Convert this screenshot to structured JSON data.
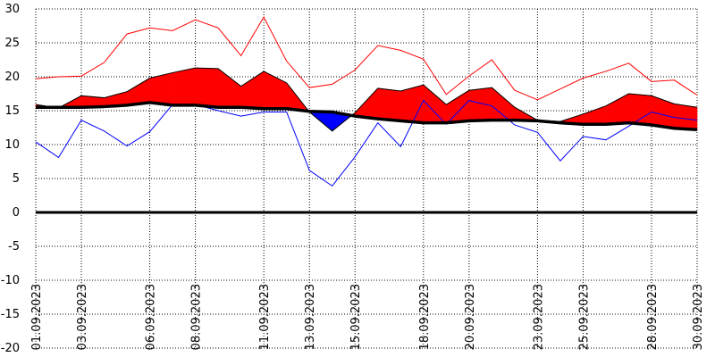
{
  "chart_data": {
    "type": "area",
    "title": "",
    "xlabel": "",
    "ylabel": "",
    "ylim": [
      -20,
      30
    ],
    "y_ticks": [
      "30",
      "25",
      "20",
      "15",
      "10",
      "5",
      "0",
      "-5",
      "-10",
      "-15",
      "-20"
    ],
    "x_labels": [
      "01.09.2023",
      "03.09.2023",
      "06.09.2023",
      "08.09.2023",
      "11.09.2023",
      "13.09.2023",
      "15.09.2023",
      "18.09.2023",
      "20.09.2023",
      "23.09.2023",
      "25.09.2023",
      "28.09.2023",
      "30.09.2023"
    ],
    "x_label_days": [
      1,
      3,
      6,
      8,
      11,
      13,
      15,
      18,
      20,
      23,
      25,
      28,
      30
    ],
    "grid": true,
    "days": [
      1,
      2,
      3,
      4,
      5,
      6,
      7,
      8,
      9,
      10,
      11,
      12,
      13,
      14,
      15,
      16,
      17,
      18,
      19,
      20,
      21,
      22,
      23,
      24,
      25,
      26,
      27,
      28,
      29,
      30
    ],
    "series": [
      {
        "color": "#ff0000",
        "style": "thin-line",
        "values": [
          19.7,
          20,
          20.1,
          22.1,
          26.3,
          27.2,
          26.8,
          28.4,
          27.2,
          23.1,
          28.8,
          22.3,
          18.4,
          18.9,
          21.0,
          24.6,
          23.9,
          22.6,
          17.4,
          20.1,
          22.5,
          18.0,
          16.6,
          18.2,
          19.8,
          20.8,
          22.0,
          19.3,
          19.5,
          17.3
        ]
      },
      {
        "color": "#0000ff",
        "style": "thin-line",
        "values": [
          10.4,
          8.1,
          13.6,
          12.0,
          9.8,
          11.9,
          15.9,
          15.9,
          15.0,
          14.2,
          14.8,
          14.8,
          6.2,
          3.9,
          8.2,
          13.2,
          9.7,
          16.5,
          13.0,
          16.5,
          15.7,
          12.9,
          11.8,
          7.6,
          11.2,
          10.7,
          12.7,
          14.8,
          14.0,
          13.6
        ]
      },
      {
        "color": "#000000",
        "style": "thick-line",
        "values": [
          15.5,
          15.5,
          15.5,
          15.6,
          15.8,
          16.2,
          15.8,
          15.8,
          15.5,
          15.5,
          15.3,
          15.3,
          14.9,
          14.8,
          14.2,
          13.8,
          13.5,
          13.2,
          13.2,
          13.5,
          13.6,
          13.6,
          13.5,
          13.2,
          13.0,
          13.0,
          13.2,
          12.9,
          12.4,
          12.2
        ]
      },
      {
        "color": "#ff0000",
        "style": "fill-above-black",
        "values": [
          15.9,
          15.4,
          17.2,
          16.9,
          17.8,
          19.8,
          20.6,
          21.3,
          21.2,
          18.6,
          20.8,
          19.1,
          14.8,
          12.0,
          14.7,
          18.3,
          17.9,
          18.8,
          15.9,
          18.0,
          18.4,
          15.5,
          13.6,
          13.4,
          14.5,
          15.7,
          17.5,
          17.2,
          16.0,
          15.5
        ]
      }
    ]
  }
}
